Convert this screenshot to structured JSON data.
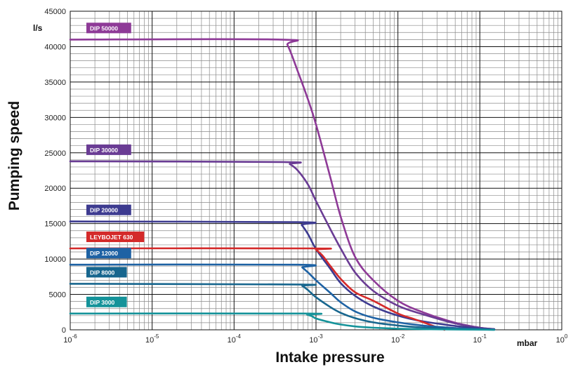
{
  "chart_data": {
    "type": "line",
    "title": "",
    "xlabel": "Intake pressure",
    "ylabel": "Pumping speed",
    "x_unit": "mbar",
    "y_unit": "l/s",
    "x_scale": "log",
    "xlim": [
      1e-06,
      1
    ],
    "ylim": [
      0,
      45000
    ],
    "grid": true,
    "x_ticks": [
      {
        "base": "10",
        "exp": "-6"
      },
      {
        "base": "10",
        "exp": "-5"
      },
      {
        "base": "10",
        "exp": "-4"
      },
      {
        "base": "10",
        "exp": "-3"
      },
      {
        "base": "10",
        "exp": "-2"
      },
      {
        "base": "10",
        "exp": "-1"
      },
      {
        "base": "10",
        "exp": "0"
      }
    ],
    "y_ticks": [
      "0",
      "5000",
      "10000",
      "15000",
      "20000",
      "25000",
      "30000",
      "35000",
      "40000",
      "45000"
    ],
    "series": [
      {
        "name": "DIP 50000",
        "color": "#8e3a97",
        "x": [
          1e-06,
          0.00037,
          0.00045,
          0.0006,
          0.0008,
          0.001,
          0.0015,
          0.002,
          0.003,
          0.005,
          0.01,
          0.02,
          0.05,
          0.1,
          0.15
        ],
        "y": [
          41000,
          41000,
          40200,
          36500,
          32500,
          29000,
          21500,
          16000,
          10300,
          7000,
          4100,
          2500,
          1000,
          300,
          100
        ]
      },
      {
        "name": "DIP 30000",
        "color": "#6a3c94",
        "x": [
          1e-06,
          0.0004,
          0.00048,
          0.0006,
          0.0008,
          0.001,
          0.0015,
          0.002,
          0.003,
          0.005,
          0.01,
          0.02,
          0.05,
          0.1,
          0.15
        ],
        "y": [
          23800,
          23700,
          23400,
          22500,
          20500,
          18200,
          14200,
          11500,
          8100,
          5500,
          3400,
          2200,
          900,
          300,
          100
        ]
      },
      {
        "name": "DIP 20000",
        "color": "#3d3b90",
        "x": [
          1e-06,
          0.0006,
          0.00067,
          0.0008,
          0.001,
          0.0015,
          0.002,
          0.003,
          0.005,
          0.01,
          0.02,
          0.05,
          0.1,
          0.15
        ],
        "y": [
          15300,
          15200,
          14800,
          13500,
          11400,
          8600,
          6600,
          4800,
          3300,
          2000,
          1200,
          550,
          200,
          80
        ]
      },
      {
        "name": "LEYBOJET 630",
        "color": "#d42a2a",
        "x": [
          1e-06,
          0.0009,
          0.001,
          0.0012,
          0.0015,
          0.002,
          0.003,
          0.005,
          0.01,
          0.015,
          0.02,
          0.03,
          0.037
        ],
        "y": [
          11500,
          11500,
          11300,
          10500,
          9000,
          7200,
          5300,
          4100,
          2300,
          1600,
          1100,
          350,
          0
        ]
      },
      {
        "name": "DIP 12000",
        "color": "#1e62a4",
        "x": [
          1e-06,
          0.0006,
          0.00068,
          0.0008,
          0.001,
          0.0015,
          0.002,
          0.003,
          0.005,
          0.01,
          0.02,
          0.05,
          0.1,
          0.15
        ],
        "y": [
          9200,
          9200,
          8800,
          8100,
          7000,
          5200,
          3900,
          2600,
          1700,
          1050,
          600,
          250,
          100,
          30
        ]
      },
      {
        "name": "DIP 8000",
        "color": "#17668e",
        "x": [
          1e-06,
          0.0006,
          0.00068,
          0.0008,
          0.001,
          0.0015,
          0.002,
          0.003,
          0.005,
          0.01,
          0.02,
          0.05,
          0.1,
          0.15
        ],
        "y": [
          6500,
          6400,
          6200,
          5600,
          4600,
          3200,
          2400,
          1650,
          1050,
          600,
          330,
          130,
          50,
          10
        ]
      },
      {
        "name": "DIP 3000",
        "color": "#15939a",
        "x": [
          1e-06,
          0.0007,
          0.00078,
          0.0009,
          0.001,
          0.0015,
          0.002,
          0.003,
          0.005,
          0.01,
          0.02,
          0.05,
          0.1,
          0.15
        ],
        "y": [
          2300,
          2300,
          2150,
          1900,
          1600,
          1050,
          750,
          480,
          300,
          160,
          90,
          40,
          15,
          0
        ]
      }
    ]
  }
}
